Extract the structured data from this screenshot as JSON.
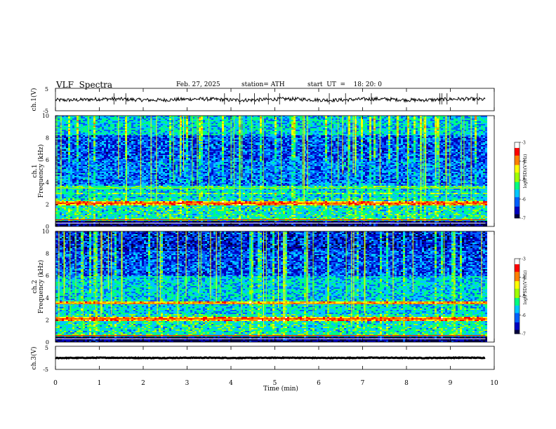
{
  "header": {
    "title": "VLF  Spectra",
    "date": "Feb. 27, 2025",
    "station": "station= ATH",
    "start": "start  UT  =    18: 20: 0"
  },
  "chart_data": [
    {
      "type": "line",
      "ylabel": "ch.1(V)",
      "ylim": [
        -5,
        5
      ],
      "yticks": [
        "5",
        "-5"
      ],
      "xlim": [
        0,
        10
      ],
      "trace_mean": 0,
      "trace_amplitude": 0.8
    },
    {
      "type": "heatmap",
      "ylabel": "ch.1\nFrequency  (kHz)",
      "ylabel_lines": [
        "ch.1",
        "Frequency  (kHz)"
      ],
      "ylim": [
        0,
        10
      ],
      "yticks": [
        "0",
        "2",
        "4",
        "6",
        "8",
        "10"
      ],
      "xlim": [
        0,
        10
      ],
      "data_end_min": 9.8,
      "colorbar": {
        "label": "log(PSD)(V²/Hz)",
        "ticks": [
          "-3",
          "-4",
          "-5",
          "-6",
          "-7"
        ],
        "range": [
          -7,
          -3
        ]
      }
    },
    {
      "type": "heatmap",
      "ylabel": "ch.2\nFrequency  (kHz)",
      "ylabel_lines": [
        "ch.2",
        "Frequency  (kHz)"
      ],
      "ylim": [
        0,
        10
      ],
      "yticks": [
        "0",
        "2",
        "4",
        "6",
        "8",
        "10"
      ],
      "xlim": [
        0,
        10
      ],
      "data_end_min": 9.8,
      "colorbar": {
        "label": "log(PSD)(V²/Hz)",
        "ticks": [
          "-3",
          "-4",
          "-5",
          "-6",
          "-7"
        ],
        "range": [
          -7,
          -3
        ]
      }
    },
    {
      "type": "line",
      "ylabel": "ch.3(V)",
      "ylim": [
        -5,
        5
      ],
      "yticks": [
        "5",
        "-5"
      ],
      "xlim": [
        0,
        10
      ],
      "trace_mean": 0,
      "trace_amplitude": 0.15
    }
  ],
  "xaxis": {
    "label": "Time  (min)",
    "ticks": [
      "0",
      "1",
      "2",
      "3",
      "4",
      "5",
      "6",
      "7",
      "8",
      "9",
      "10"
    ]
  },
  "colors": {
    "trace": "#000000",
    "colormap": [
      "#000040",
      "#0000c0",
      "#0060ff",
      "#00c8ff",
      "#00ff80",
      "#a0ff00",
      "#ffff00",
      "#ff8000",
      "#ff0000",
      "#ffffff"
    ]
  }
}
